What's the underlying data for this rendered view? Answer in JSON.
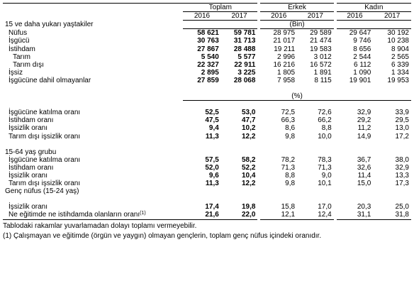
{
  "headers": {
    "groups": [
      "Toplam",
      "Erkek",
      "Kadın"
    ],
    "years": [
      "2016",
      "2017",
      "2016",
      "2017",
      "2016",
      "2017"
    ]
  },
  "section1": {
    "title": "15 ve daha yukarı yaştakiler",
    "unit": "(Bin)",
    "rows": [
      {
        "label": "Nüfus",
        "indent": 1,
        "values": [
          "58 621",
          "59 781",
          "28 975",
          "29 589",
          "29 647",
          "30 192"
        ]
      },
      {
        "label": "İşgücü",
        "indent": 1,
        "values": [
          "30 763",
          "31 713",
          "21 017",
          "21 474",
          "9 746",
          "10 238"
        ]
      },
      {
        "label": "İstihdam",
        "indent": 1,
        "values": [
          "27 867",
          "28 488",
          "19 211",
          "19 583",
          "8 656",
          "8 904"
        ]
      },
      {
        "label": "Tarım",
        "indent": 2,
        "values": [
          "5 540",
          "5 577",
          "2 996",
          "3 012",
          "2 544",
          "2 565"
        ]
      },
      {
        "label": "Tarım dışı",
        "indent": 2,
        "values": [
          "22 327",
          "22 911",
          "16 216",
          "16 572",
          "6 112",
          "6 339"
        ]
      },
      {
        "label": "İşsiz",
        "indent": 1,
        "values": [
          "2 895",
          "3 225",
          "1 805",
          "1 891",
          "1 090",
          "1 334"
        ]
      },
      {
        "label": "İşgücüne dahil olmayanlar",
        "indent": 1,
        "values": [
          "27 859",
          "28 068",
          "7 958",
          "8 115",
          "19 901",
          "19 953"
        ]
      }
    ],
    "percent_unit": "(%)",
    "percent_rows": [
      {
        "label": "İşgücüne katılma oranı",
        "values": [
          "52,5",
          "53,0",
          "72,5",
          "72,6",
          "32,9",
          "33,9"
        ]
      },
      {
        "label": "İstihdam oranı",
        "values": [
          "47,5",
          "47,7",
          "66,3",
          "66,2",
          "29,2",
          "29,5"
        ]
      },
      {
        "label": "İşsizlik oranı",
        "values": [
          "9,4",
          "10,2",
          "8,6",
          "8,8",
          "11,2",
          "13,0"
        ]
      },
      {
        "label": "Tarım dışı işsizlik oranı",
        "values": [
          "11,3",
          "12,2",
          "9,8",
          "10,0",
          "14,9",
          "17,2"
        ]
      }
    ]
  },
  "section2": {
    "title": "15-64 yaş grubu",
    "rows": [
      {
        "label": "İşgücüne katılma oranı",
        "values": [
          "57,5",
          "58,2",
          "78,2",
          "78,3",
          "36,7",
          "38,0"
        ]
      },
      {
        "label": "İstihdam oranı",
        "values": [
          "52,0",
          "52,2",
          "71,3",
          "71,3",
          "32,6",
          "32,9"
        ]
      },
      {
        "label": "İşsizlik oranı",
        "values": [
          "9,6",
          "10,4",
          "8,8",
          "9,0",
          "11,4",
          "13,3"
        ]
      },
      {
        "label": "Tarım dışı işsizlik oranı",
        "values": [
          "11,3",
          "12,2",
          "9,8",
          "10,1",
          "15,0",
          "17,3"
        ]
      }
    ]
  },
  "section3": {
    "title": "Genç nüfus (15-24 yaş)",
    "rows": [
      {
        "label": "İşsizlik oranı",
        "sup": "",
        "values": [
          "17,4",
          "19,8",
          "15,8",
          "17,0",
          "20,3",
          "25,0"
        ]
      },
      {
        "label": "Ne eğitimde ne istihdamda olanların oranı",
        "sup": "(1)",
        "values": [
          "21,6",
          "22,0",
          "12,1",
          "12,4",
          "31,1",
          "31,8"
        ]
      }
    ]
  },
  "notes": [
    "Tablodaki rakamlar yuvarlamadan dolayı toplamı vermeyebilir.",
    "(1) Çalışmayan ve eğitimde (örgün ve yaygın) olmayan gençlerin, toplam genç nüfus içindeki oranıdır."
  ]
}
